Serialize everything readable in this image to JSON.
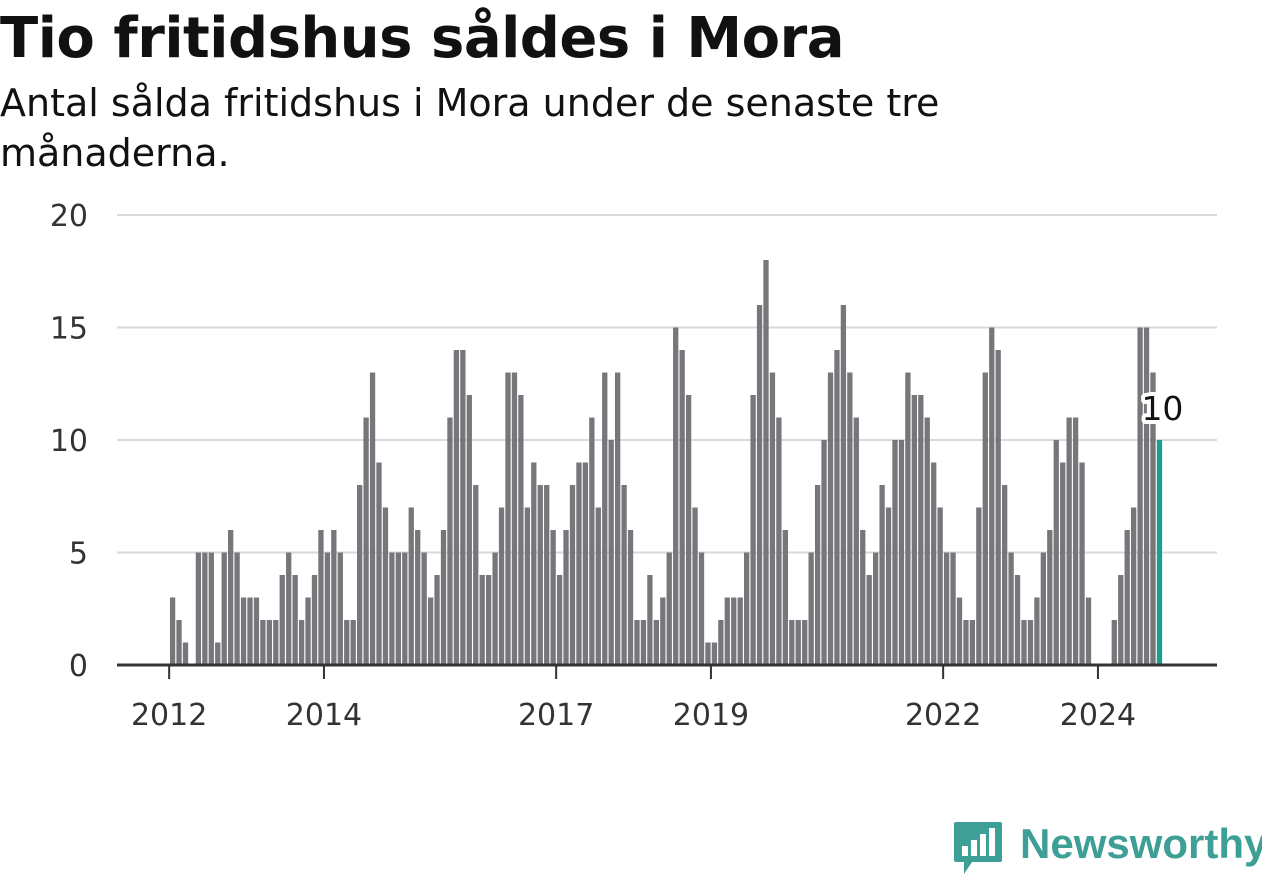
{
  "title": "Tio fritidshus såldes i Mora",
  "subtitle": "Antal sålda fritidshus i Mora under de senaste tre månaderna.",
  "brand": {
    "name": "Newsworthy",
    "color": "#3d9f95"
  },
  "colors": {
    "bar": "#77767b",
    "highlight": "#1a9f8f",
    "grid": "#d9d9d9",
    "axis": "#333333"
  },
  "chart_data": {
    "type": "bar",
    "title": "Tio fritidshus såldes i Mora",
    "xlabel": "",
    "ylabel": "",
    "ylim": [
      0,
      20
    ],
    "yticks": [
      0,
      5,
      10,
      15,
      20
    ],
    "xtick_labels": [
      "2012",
      "2014",
      "2017",
      "2019",
      "2022",
      "2024"
    ],
    "x_start": "2012-01",
    "x_end": "2024-12",
    "grid": true,
    "last_value_label": "10",
    "values": [
      0,
      3,
      2,
      1,
      0,
      5,
      5,
      5,
      1,
      5,
      6,
      5,
      3,
      3,
      3,
      2,
      2,
      2,
      4,
      5,
      4,
      2,
      3,
      4,
      6,
      5,
      6,
      5,
      2,
      2,
      8,
      11,
      13,
      9,
      7,
      5,
      5,
      5,
      7,
      6,
      5,
      3,
      4,
      6,
      11,
      14,
      14,
      12,
      8,
      4,
      4,
      5,
      7,
      13,
      13,
      12,
      7,
      9,
      8,
      8,
      6,
      4,
      6,
      8,
      9,
      9,
      11,
      7,
      13,
      10,
      13,
      8,
      6,
      2,
      2,
      4,
      2,
      3,
      5,
      15,
      14,
      12,
      7,
      5,
      1,
      1,
      2,
      3,
      3,
      3,
      5,
      12,
      16,
      18,
      13,
      11,
      6,
      2,
      2,
      2,
      5,
      8,
      10,
      13,
      14,
      16,
      13,
      11,
      6,
      4,
      5,
      8,
      7,
      10,
      10,
      13,
      12,
      12,
      11,
      9,
      7,
      5,
      5,
      3,
      2,
      2,
      7,
      13,
      15,
      14,
      8,
      5,
      4,
      2,
      2,
      3,
      5,
      6,
      10,
      9,
      11,
      11,
      9,
      3,
      0,
      0,
      0,
      2,
      4,
      6,
      7,
      15,
      15,
      13,
      10
    ]
  }
}
